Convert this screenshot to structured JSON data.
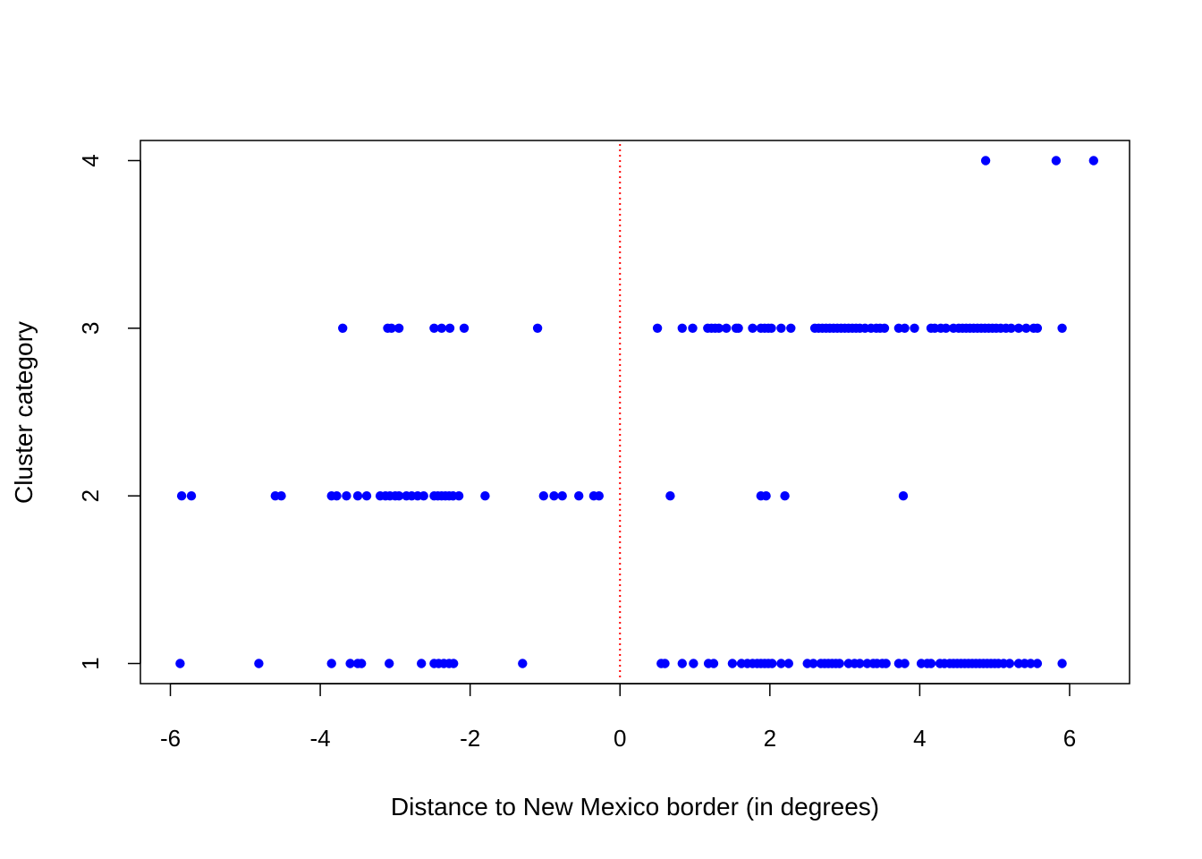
{
  "chart_data": {
    "type": "scatter",
    "title": "",
    "xlabel": "Distance to New Mexico border (in degrees)",
    "ylabel": "Cluster category",
    "xlim": [
      -6.4,
      6.8
    ],
    "ylim": [
      0.88,
      4.12
    ],
    "xticks": [
      -6,
      -4,
      -2,
      0,
      2,
      4,
      6
    ],
    "xtick_labels": [
      "-6",
      "-4",
      "-2",
      "0",
      "2",
      "4",
      "6"
    ],
    "yticks": [
      1,
      2,
      3,
      4
    ],
    "ytick_labels": [
      "1",
      "2",
      "3",
      "4"
    ],
    "grid": false,
    "legend": "none",
    "point_color": "#0000ff",
    "reference_line": {
      "x": 0,
      "color": "#ff0000",
      "style": "dotted"
    },
    "series": [
      {
        "y": 4,
        "x": [
          4.88,
          5.82,
          6.32
        ]
      },
      {
        "y": 3,
        "x": [
          -3.7,
          -3.1,
          -3.05,
          -2.95,
          -2.48,
          -2.38,
          -2.27,
          -2.08,
          -1.1,
          0.5,
          0.83,
          0.97,
          1.17,
          1.22,
          1.27,
          1.32,
          1.42,
          1.55,
          1.58,
          1.77,
          1.88,
          1.93,
          1.98,
          2.02,
          2.15,
          2.28,
          2.6,
          2.65,
          2.7,
          2.75,
          2.8,
          2.85,
          2.9,
          2.95,
          3.0,
          3.05,
          3.1,
          3.15,
          3.2,
          3.27,
          3.35,
          3.42,
          3.47,
          3.53,
          3.72,
          3.8,
          3.93,
          4.15,
          4.2,
          4.28,
          4.35,
          4.45,
          4.52,
          4.57,
          4.62,
          4.67,
          4.72,
          4.77,
          4.82,
          4.87,
          4.92,
          4.97,
          5.02,
          5.08,
          5.15,
          5.22,
          5.32,
          5.42,
          5.52,
          5.57,
          5.9
        ]
      },
      {
        "y": 2,
        "x": [
          -5.85,
          -5.72,
          -4.6,
          -4.52,
          -3.85,
          -3.78,
          -3.65,
          -3.5,
          -3.38,
          -3.2,
          -3.13,
          -3.07,
          -3.0,
          -2.95,
          -2.85,
          -2.78,
          -2.7,
          -2.62,
          -2.48,
          -2.43,
          -2.38,
          -2.33,
          -2.28,
          -2.23,
          -2.15,
          -1.8,
          -1.02,
          -0.88,
          -0.77,
          -0.55,
          -0.35,
          -0.28,
          0.67,
          1.88,
          1.95,
          2.2,
          3.78
        ]
      },
      {
        "y": 1,
        "x": [
          -5.87,
          -4.82,
          -3.85,
          -3.6,
          -3.5,
          -3.45,
          -3.08,
          -2.65,
          -2.48,
          -2.42,
          -2.35,
          -2.28,
          -2.22,
          -1.3,
          0.55,
          0.6,
          0.83,
          0.98,
          1.18,
          1.25,
          1.5,
          1.62,
          1.7,
          1.77,
          1.83,
          1.88,
          1.93,
          1.98,
          2.03,
          2.15,
          2.25,
          2.5,
          2.58,
          2.68,
          2.73,
          2.78,
          2.83,
          2.88,
          2.93,
          3.05,
          3.13,
          3.2,
          3.3,
          3.38,
          3.43,
          3.5,
          3.55,
          3.72,
          3.8,
          4.02,
          4.1,
          4.15,
          4.27,
          4.33,
          4.4,
          4.45,
          4.5,
          4.55,
          4.6,
          4.65,
          4.7,
          4.75,
          4.8,
          4.85,
          4.9,
          4.95,
          5.0,
          5.05,
          5.12,
          5.2,
          5.32,
          5.4,
          5.48,
          5.57,
          5.9
        ]
      }
    ]
  }
}
